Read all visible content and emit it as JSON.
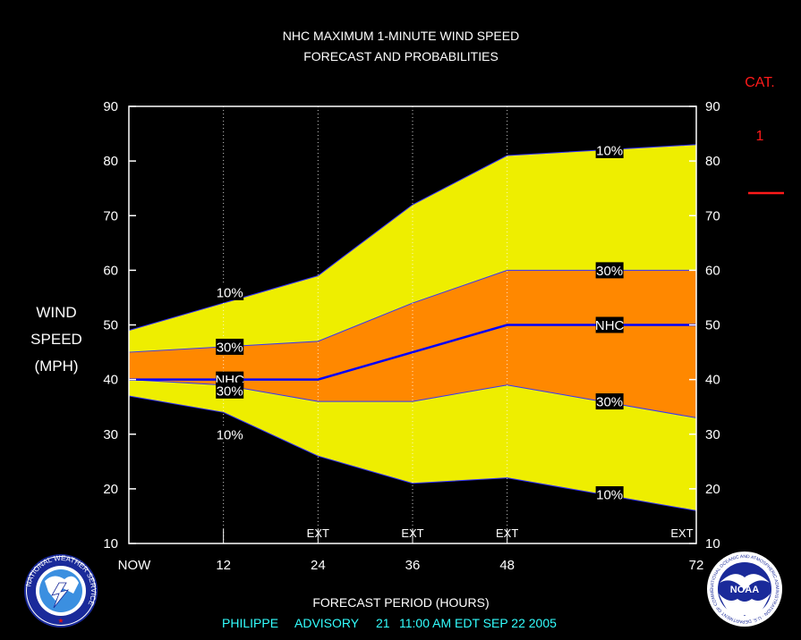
{
  "header": {
    "title_line1": "NHC MAXIMUM 1-MINUTE WIND SPEED",
    "title_line2": "FORECAST AND PROBABILITIES"
  },
  "footer": {
    "xlabel": "FORECAST PERIOD (HOURS)",
    "advisory": {
      "storm": "PHILIPPE",
      "label": "ADVISORY",
      "number": "21",
      "time": "11:00 AM EDT SEP 22 2005"
    }
  },
  "category_legend": {
    "heading": "CAT.",
    "value": "1",
    "line_color": "#ff1a1a"
  },
  "logos": {
    "left": "nws-logo",
    "left_text": "NATIONAL WEATHER SERVICE",
    "right": "noaa-logo",
    "right_center_text": "NOAA",
    "right_ring_text": "NATIONAL OCEANIC AND ATMOSPHERIC ADMINISTRATION · U.S. DEPARTMENT OF COMMERCE"
  },
  "chart_data": {
    "type": "area",
    "ylabel_lines": [
      "WIND",
      "SPEED",
      "(MPH)"
    ],
    "xlabel": "FORECAST PERIOD (HOURS)",
    "xlim": [
      0,
      72
    ],
    "ylim": [
      10,
      90
    ],
    "yticks": [
      10,
      20,
      30,
      40,
      50,
      60,
      70,
      80,
      90
    ],
    "xticks": [
      {
        "value": 0,
        "label": "NOW"
      },
      {
        "value": 12,
        "label": "12"
      },
      {
        "value": 24,
        "label": "24"
      },
      {
        "value": 36,
        "label": "36"
      },
      {
        "value": 48,
        "label": "48"
      },
      {
        "value": 72,
        "label": "72"
      }
    ],
    "gridlines_x": [
      12,
      24,
      36,
      48
    ],
    "ext_marks": [
      {
        "x": 24,
        "label": "EXT"
      },
      {
        "x": 36,
        "label": "EXT"
      },
      {
        "x": 48,
        "label": "EXT"
      },
      {
        "x": 72,
        "label": "EXT"
      }
    ],
    "x": [
      0,
      12,
      24,
      36,
      48,
      72
    ],
    "bands": [
      {
        "name": "10%",
        "color": "#eeee00",
        "upper": [
          49,
          54,
          59,
          72,
          81,
          83
        ],
        "lower": [
          37,
          34,
          26,
          21,
          22,
          16
        ]
      },
      {
        "name": "30%",
        "color": "#ff8800",
        "upper": [
          45,
          46,
          47,
          54,
          60,
          60
        ],
        "lower": [
          40,
          39,
          36,
          36,
          39,
          33
        ]
      }
    ],
    "forecast": {
      "name": "NHC",
      "color": "#0000ff",
      "values": [
        40,
        40,
        40,
        45,
        50,
        50
      ]
    },
    "labels": [
      {
        "text": "10%",
        "x": 12.8,
        "y": 56
      },
      {
        "text": "30%",
        "x": 12.8,
        "y": 46
      },
      {
        "text": "NHC",
        "x": 12.8,
        "y": 40
      },
      {
        "text": "30%",
        "x": 12.8,
        "y": 38
      },
      {
        "text": "10%",
        "x": 12.8,
        "y": 30
      },
      {
        "text": "10%",
        "x": 61,
        "y": 82
      },
      {
        "text": "30%",
        "x": 61,
        "y": 60
      },
      {
        "text": "NHC",
        "x": 61,
        "y": 50
      },
      {
        "text": "30%",
        "x": 61,
        "y": 36
      },
      {
        "text": "10%",
        "x": 61,
        "y": 19
      }
    ],
    "colors": {
      "background": "#000000",
      "outline": "#ffffff",
      "band_edge": "#3333ff"
    }
  }
}
